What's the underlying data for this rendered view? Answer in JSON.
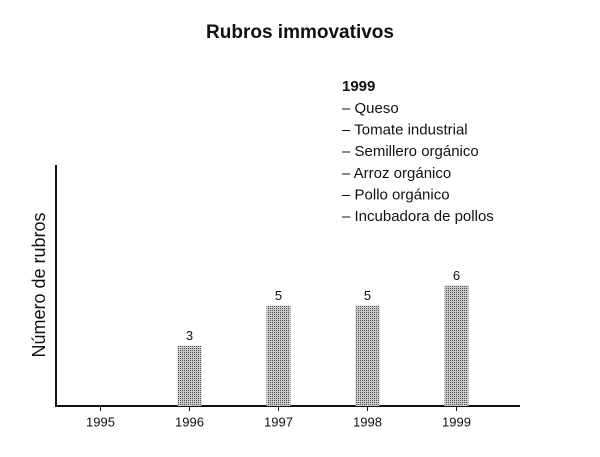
{
  "chart_data": {
    "type": "bar",
    "title": "Rubros immovativos",
    "y_label": "Número de rubros",
    "categories": [
      "1995",
      "1996",
      "1997",
      "1998",
      "1999"
    ],
    "values": [
      null,
      3,
      5,
      5,
      6
    ],
    "color": "#9a9a9a",
    "ylim": [
      0,
      12
    ],
    "annotation": {
      "title": "1999",
      "items": [
        "– Queso",
        "– Tomate industrial",
        "– Semillero orgánico",
        "– Arroz orgánico",
        "– Pollo orgánico",
        "– Incubadora de pollos"
      ]
    }
  }
}
